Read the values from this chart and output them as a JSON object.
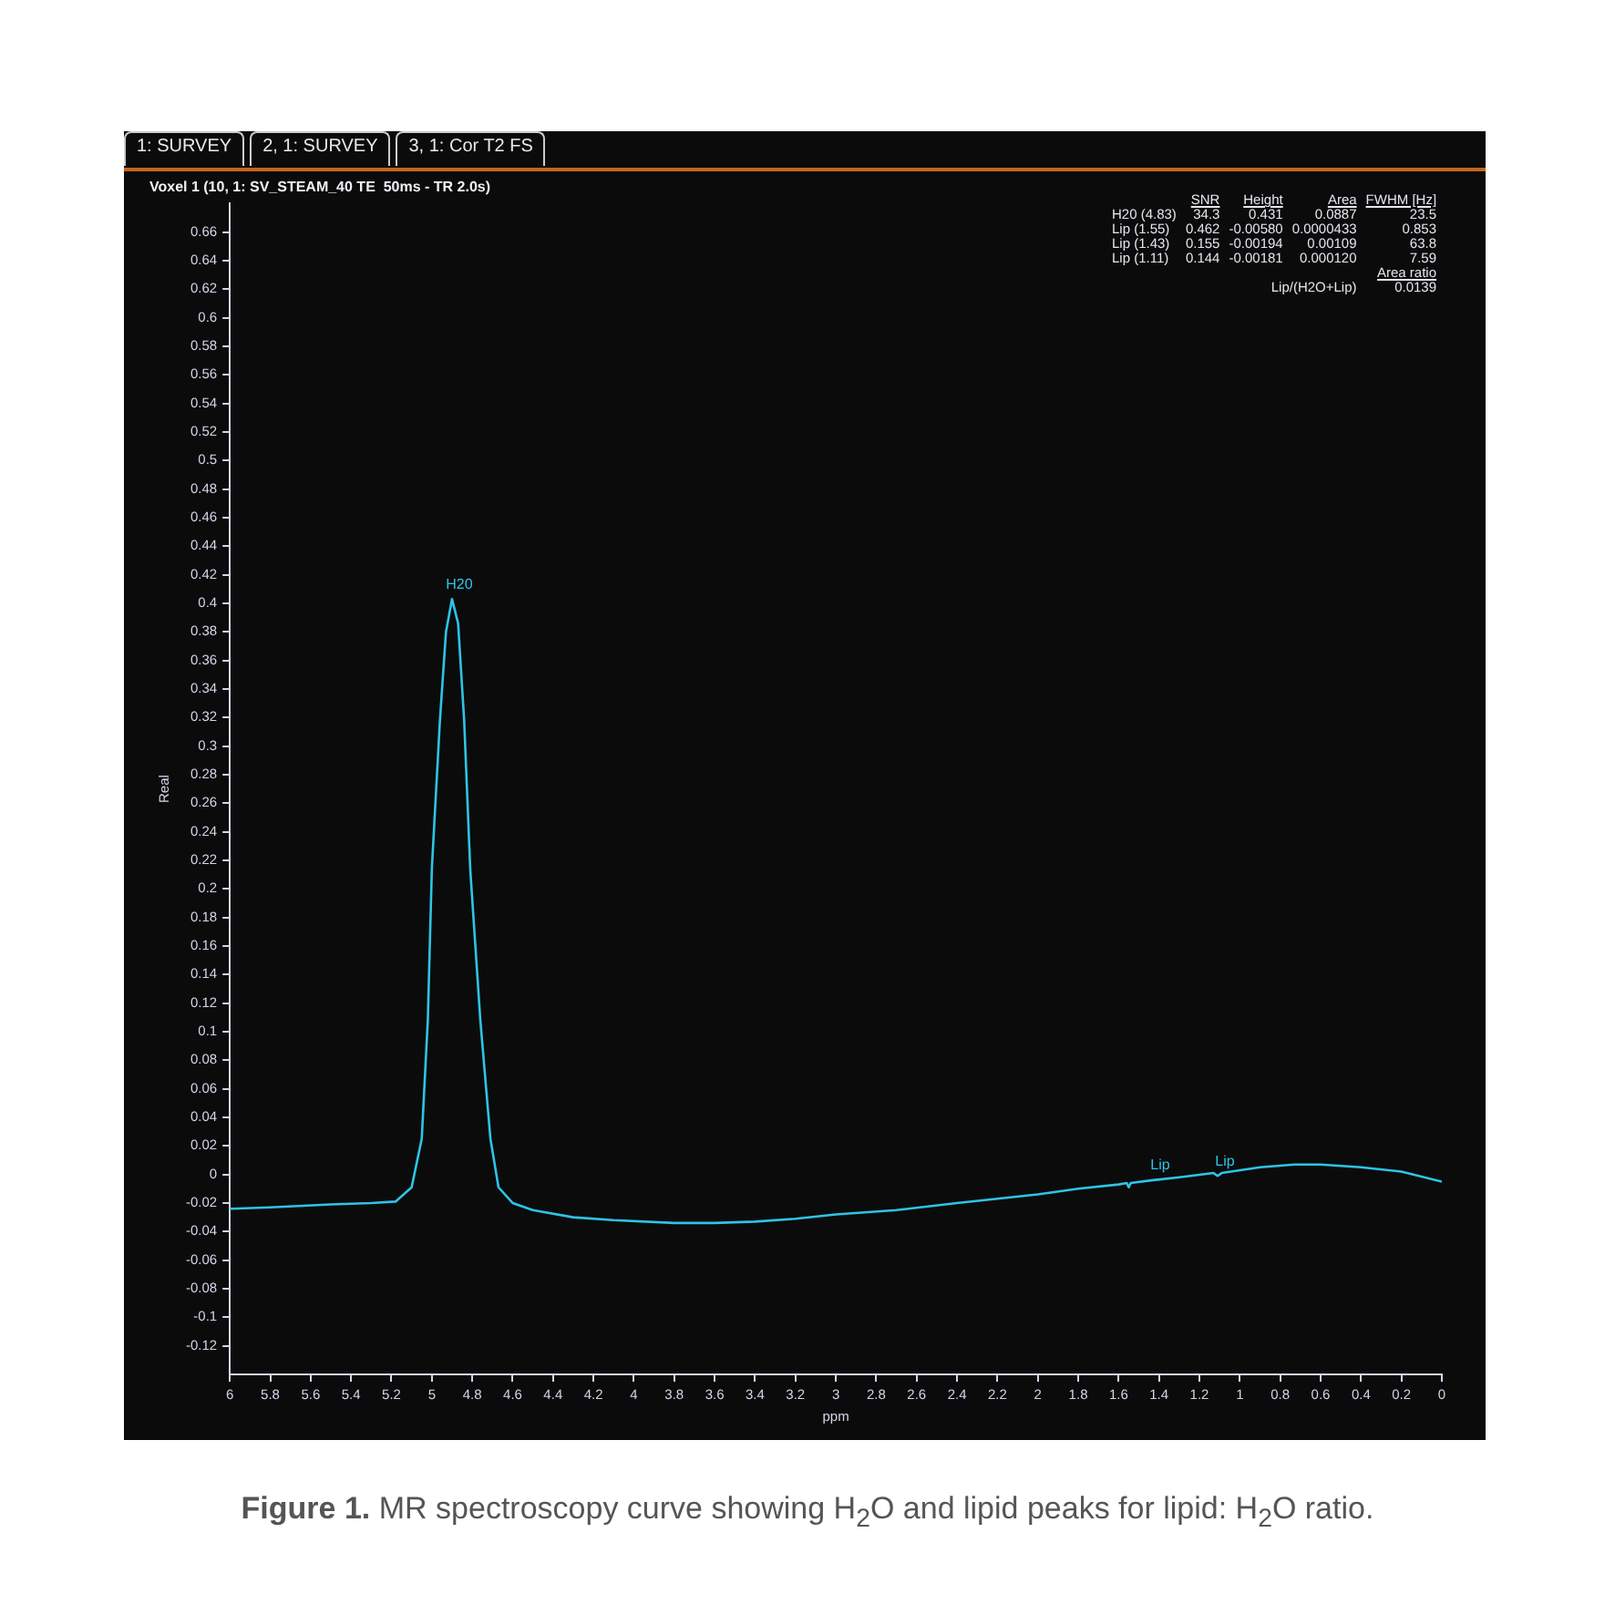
{
  "chart_data": {
    "type": "line",
    "title": "Voxel 1 (10, 1: SV_STEAM_40 TE  50ms - TR 2.0s)",
    "xlabel": "ppm",
    "ylabel": "Real",
    "x": [
      6,
      5.8,
      5.5,
      5.3,
      5.18,
      5.1,
      5.05,
      5.02,
      5.0,
      4.96,
      4.93,
      4.9,
      4.87,
      4.84,
      4.81,
      4.76,
      4.71,
      4.67,
      4.6,
      4.5,
      4.3,
      4.1,
      3.8,
      3.6,
      3.4,
      3.2,
      3.0,
      2.7,
      2.4,
      2.2,
      2.0,
      1.8,
      1.6,
      1.56,
      1.55,
      1.54,
      1.43,
      1.3,
      1.13,
      1.11,
      1.09,
      0.9,
      0.73,
      0.6,
      0.4,
      0.2,
      0
    ],
    "series": [
      {
        "color": "#2ec4e6",
        "values": [
          -0.024,
          -0.023,
          -0.021,
          -0.02,
          -0.019,
          -0.009,
          0.025,
          0.108,
          0.214,
          0.318,
          0.38,
          0.403,
          0.386,
          0.318,
          0.214,
          0.108,
          0.025,
          -0.009,
          -0.02,
          -0.025,
          -0.03,
          -0.032,
          -0.034,
          -0.034,
          -0.033,
          -0.031,
          -0.028,
          -0.025,
          -0.02,
          -0.017,
          -0.014,
          -0.01,
          -0.007,
          -0.006,
          -0.009,
          -0.006,
          -0.004,
          -0.002,
          0.001,
          -0.001,
          0.001,
          0.005,
          0.007,
          0.007,
          0.005,
          0.002,
          -0.005
        ]
      }
    ],
    "xlim": [
      6,
      0
    ],
    "xticks": [
      6,
      5.8,
      5.6,
      5.4,
      5.2,
      5,
      4.8,
      4.6,
      4.4,
      4.2,
      4,
      3.8,
      3.6,
      3.4,
      3.2,
      3,
      2.8,
      2.6,
      2.4,
      2.2,
      2,
      1.8,
      1.6,
      1.4,
      1.2,
      1,
      0.8,
      0.6,
      0.4,
      0.2,
      0
    ],
    "ylim": [
      -0.14,
      0.68
    ],
    "yticks": [
      -0.12,
      -0.1,
      -0.08,
      -0.06,
      -0.04,
      -0.02,
      0,
      0.02,
      0.04,
      0.06,
      0.08,
      0.1,
      0.12,
      0.14,
      0.16,
      0.18,
      0.2,
      0.22,
      0.24,
      0.26,
      0.28,
      0.3,
      0.32,
      0.34,
      0.36,
      0.38,
      0.4,
      0.42,
      0.44,
      0.46,
      0.48,
      0.5,
      0.52,
      0.54,
      0.56,
      0.58,
      0.6,
      0.62,
      0.64,
      0.66
    ],
    "grid": false,
    "legend": false,
    "marker": "none",
    "line_style": "solid",
    "annotations": [
      "1: SURVEY",
      "2, 1: SURVEY",
      "3, 1: Cor T2 FS",
      "SNR",
      "Height",
      "Area",
      "FWHM [Hz]",
      "H20 (4.83)",
      "34.3",
      "0.431",
      "0.0887",
      "23.5",
      "Lip (1.55)",
      "0.462",
      "-0.00580",
      "0.0000433",
      "0.853",
      "Lip (1.43)",
      "0.155",
      "-0.00194",
      "0.00109",
      "63.8",
      "Lip (1.11)",
      "0.144",
      "-0.00181",
      "0.000120",
      "7.59",
      "Area ratio",
      "Lip/(H2O+Lip)",
      "0.0139",
      "Figure 1. MR spectroscopy curve showing H$_{2}$O and lipid peaks for lipid: H$_{2}$O ratio.",
      {
        "text": "H20",
        "x": 4.9,
        "y": 0.403
      },
      {
        "text": "Lip",
        "x": 1.43,
        "y": -0.004
      },
      {
        "text": "Lip",
        "x": 1.11,
        "y": -0.001
      }
    ]
  }
}
